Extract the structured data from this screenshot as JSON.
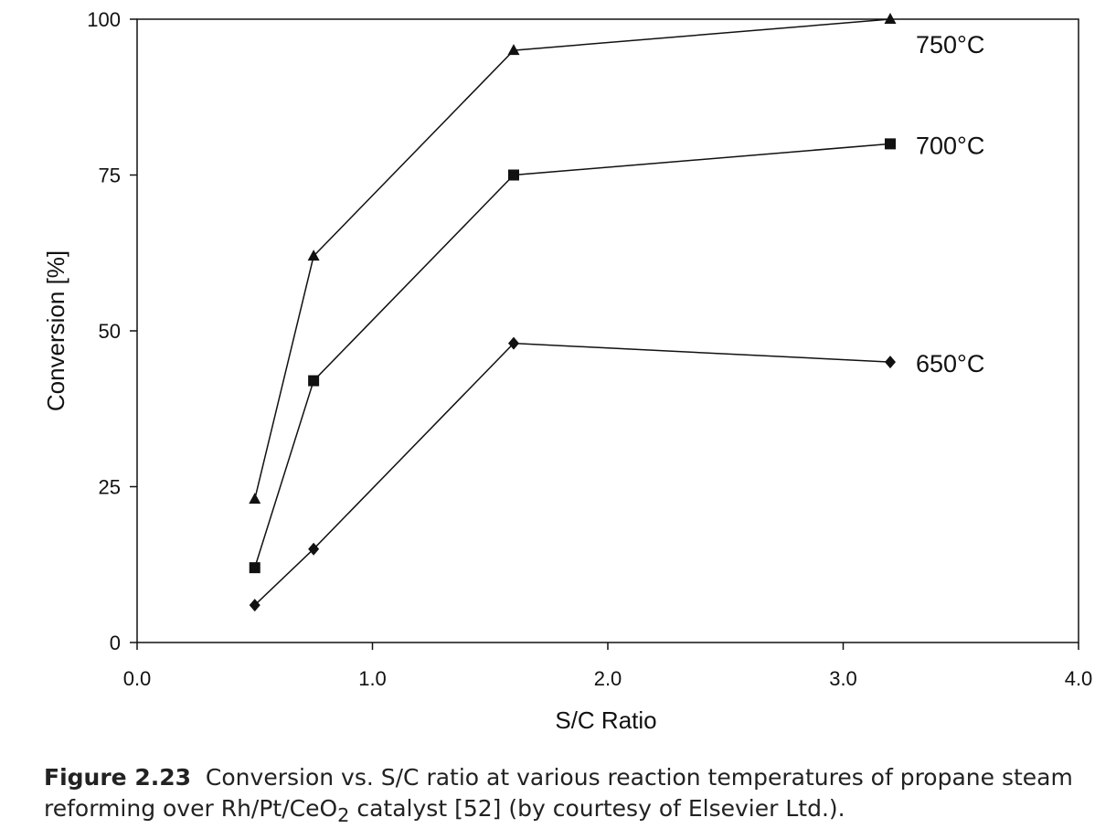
{
  "chart_data": {
    "type": "line",
    "title": "",
    "xlabel": "S/C Ratio",
    "ylabel": "Conversion [%]",
    "xlim": [
      0.0,
      4.0
    ],
    "ylim": [
      0,
      100
    ],
    "x_ticks": [
      0.0,
      1.0,
      2.0,
      3.0,
      4.0
    ],
    "x_tick_labels": [
      "0.0",
      "1.0",
      "2.0",
      "3.0",
      "4.0"
    ],
    "y_ticks": [
      0,
      25,
      50,
      75,
      100
    ],
    "y_tick_labels": [
      "0",
      "25",
      "50",
      "75",
      "100"
    ],
    "grid": false,
    "legend": "none (series labeled at right end of each line)",
    "line_color": "#111111",
    "series": [
      {
        "name": "750°C",
        "marker": "triangle",
        "x": [
          0.5,
          0.75,
          1.6,
          3.2
        ],
        "y": [
          23,
          62,
          95,
          100
        ]
      },
      {
        "name": "700°C",
        "marker": "square",
        "x": [
          0.5,
          0.75,
          1.6,
          3.2
        ],
        "y": [
          12,
          42,
          75,
          80
        ]
      },
      {
        "name": "650°C",
        "marker": "diamond",
        "x": [
          0.5,
          0.75,
          1.6,
          3.2
        ],
        "y": [
          6,
          15,
          48,
          45
        ]
      }
    ]
  },
  "caption": {
    "label": "Figure 2.23",
    "text_before_sub": "Conversion vs. S/C ratio at various reaction temperatures of propane steam reforming over Rh/Pt/CeO",
    "subscript": "2",
    "text_after_sub": " catalyst [52] (by courtesy of Elsevier Ltd.)."
  }
}
